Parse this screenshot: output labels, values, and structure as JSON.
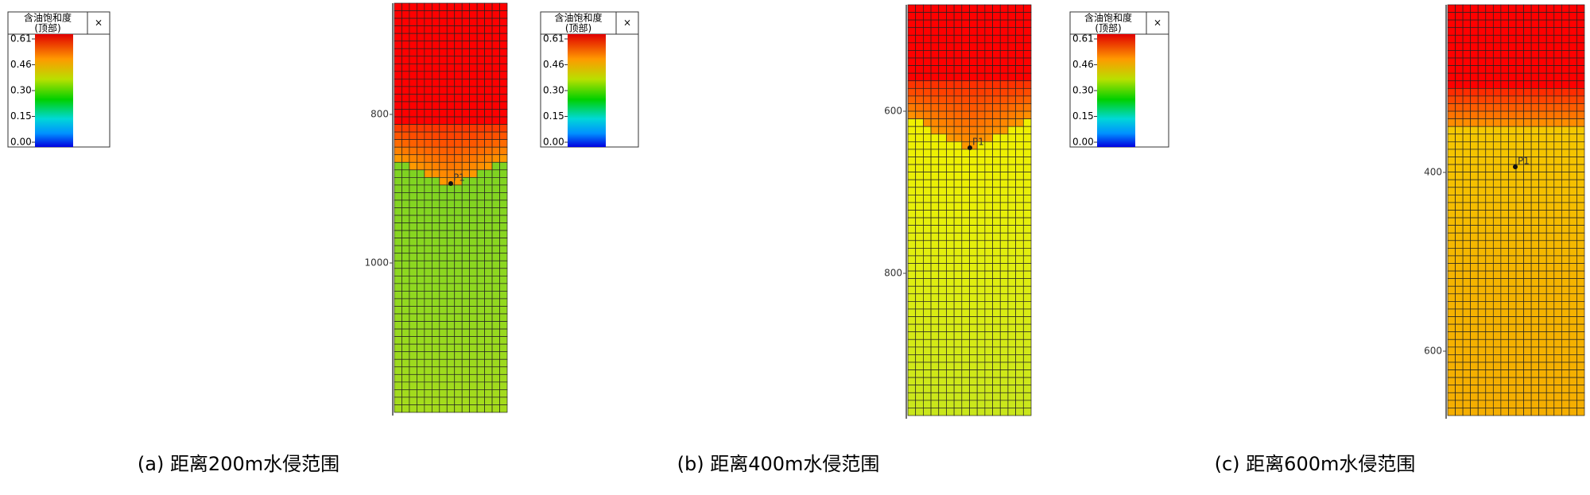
{
  "panels": [
    {
      "legend": {
        "title": "含油饱和度",
        "subtitle": "(顶部)",
        "close": "×",
        "ticks": [
          "0.61",
          "0.46",
          "0.30",
          "0.15",
          "0.00"
        ]
      },
      "axis_ticks": [
        "800",
        "1000"
      ],
      "well": "P1",
      "caption": "(a) 距离200m水侵范围"
    },
    {
      "legend": {
        "title": "含油饱和度",
        "subtitle": "(顶部)",
        "close": "×",
        "ticks": [
          "0.61",
          "0.46",
          "0.30",
          "0.15",
          "0.00"
        ]
      },
      "axis_ticks": [
        "600",
        "800"
      ],
      "well": "P1",
      "caption": "(b) 距离400m水侵范围"
    },
    {
      "legend": {
        "title": "含油饱和度",
        "subtitle": "(顶部)",
        "close": "×",
        "ticks": [
          "0.61",
          "0.46",
          "0.30",
          "0.15",
          "0.00"
        ]
      },
      "axis_ticks": [
        "400",
        "600"
      ],
      "well": "P1",
      "caption": "(c) 距离600m水侵范围"
    }
  ]
}
